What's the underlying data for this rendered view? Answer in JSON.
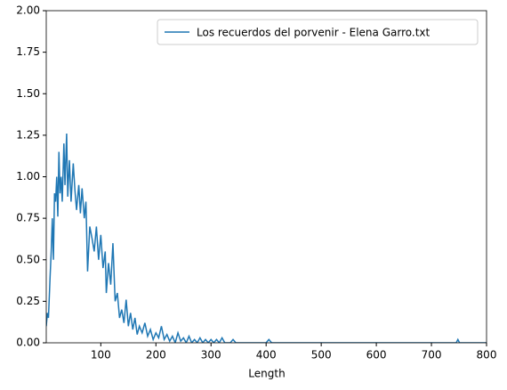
{
  "chart_data": {
    "type": "line",
    "xlabel": "Length",
    "x": [
      1,
      3,
      5,
      8,
      10,
      12,
      14,
      16,
      18,
      20,
      22,
      24,
      26,
      28,
      30,
      33,
      35,
      38,
      40,
      43,
      46,
      50,
      53,
      56,
      60,
      63,
      66,
      70,
      73,
      76,
      80,
      84,
      88,
      92,
      96,
      100,
      104,
      108,
      110,
      114,
      118,
      122,
      126,
      130,
      134,
      138,
      142,
      146,
      150,
      154,
      158,
      162,
      166,
      170,
      175,
      180,
      185,
      190,
      195,
      200,
      205,
      210,
      215,
      220,
      225,
      230,
      235,
      240,
      245,
      250,
      255,
      260,
      265,
      270,
      275,
      280,
      285,
      290,
      295,
      300,
      305,
      310,
      315,
      320,
      325,
      335,
      340,
      345,
      400,
      405,
      410,
      745,
      748,
      751,
      800
    ],
    "series": [
      {
        "name": "Los recuerdos del porvenir - Elena Garro.txt",
        "color": "#1f77b4",
        "values": [
          0.1,
          0.18,
          0.15,
          0.4,
          0.55,
          0.75,
          0.5,
          0.9,
          0.85,
          1.0,
          0.76,
          1.15,
          0.9,
          1.0,
          0.85,
          1.2,
          0.95,
          1.26,
          0.88,
          1.1,
          0.85,
          1.08,
          0.92,
          0.8,
          0.95,
          0.78,
          0.93,
          0.75,
          0.85,
          0.43,
          0.7,
          0.63,
          0.55,
          0.7,
          0.5,
          0.65,
          0.45,
          0.55,
          0.3,
          0.48,
          0.35,
          0.6,
          0.25,
          0.3,
          0.15,
          0.2,
          0.12,
          0.26,
          0.1,
          0.18,
          0.08,
          0.15,
          0.05,
          0.1,
          0.06,
          0.12,
          0.04,
          0.08,
          0.02,
          0.06,
          0.03,
          0.1,
          0.02,
          0.05,
          0.01,
          0.04,
          0,
          0.06,
          0.01,
          0.03,
          0,
          0.04,
          0,
          0.02,
          0,
          0.03,
          0,
          0.02,
          0,
          0.02,
          0,
          0.02,
          0,
          0.03,
          0,
          0,
          0.02,
          0,
          0,
          0.02,
          0,
          0,
          0.02,
          0,
          0
        ]
      }
    ],
    "xlim": [
      1,
      800
    ],
    "xticks": [
      100,
      200,
      300,
      400,
      500,
      600,
      700,
      800
    ],
    "ylim": [
      0,
      2
    ],
    "yticks": [
      {
        "value": 0,
        "label": "0.00"
      },
      {
        "value": 0.25,
        "label": "0.25"
      },
      {
        "value": 0.5,
        "label": "0.50"
      },
      {
        "value": 0.75,
        "label": "0.75"
      },
      {
        "value": 1,
        "label": "1.00"
      },
      {
        "value": 1.25,
        "label": "1.25"
      },
      {
        "value": 1.5,
        "label": "1.50"
      },
      {
        "value": 1.75,
        "label": "1.75"
      },
      {
        "value": 2,
        "label": "2.00"
      }
    ],
    "legend": "upper right"
  }
}
